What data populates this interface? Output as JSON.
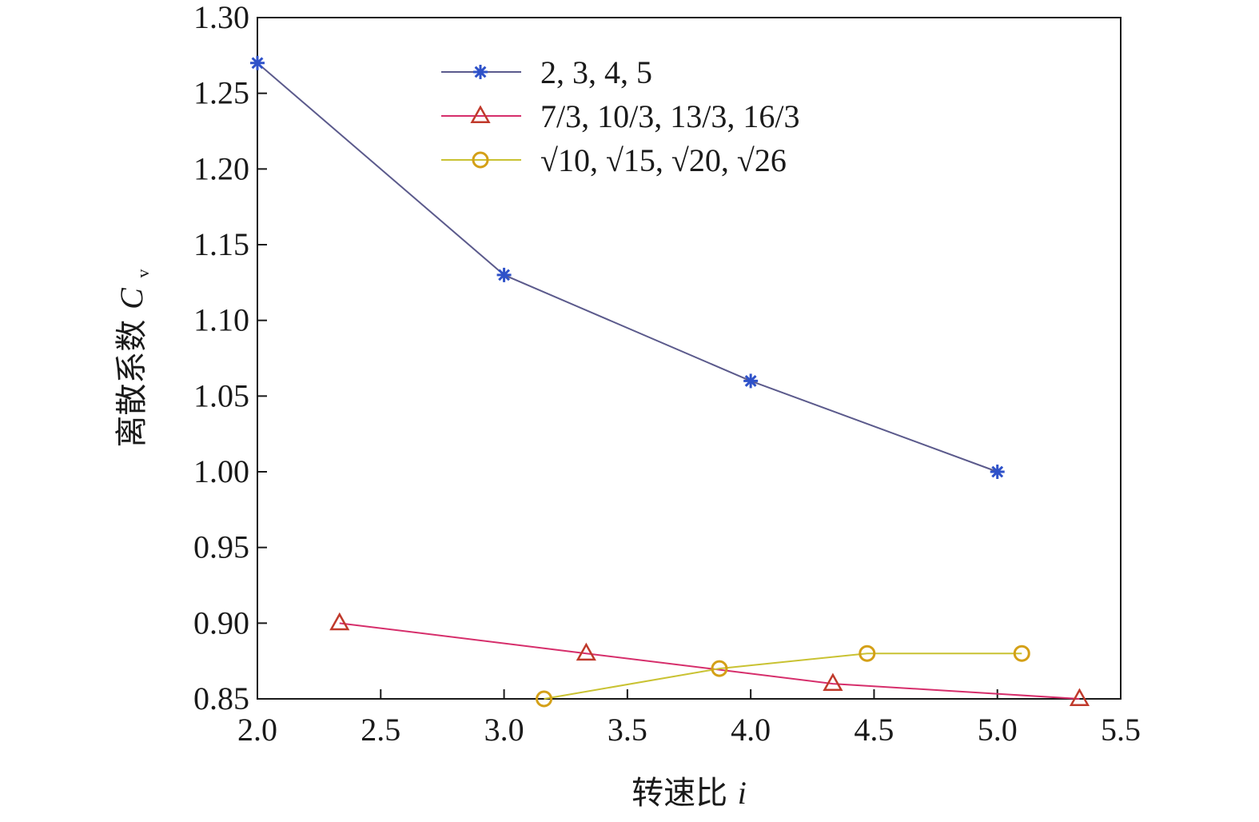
{
  "chart_data": {
    "type": "line",
    "xlabel": "转速比",
    "xlabel_var": "i",
    "ylabel": "离散系数",
    "ylabel_var": "C",
    "ylabel_sub": "v",
    "xlim": [
      2.0,
      5.5
    ],
    "ylim": [
      0.85,
      1.3
    ],
    "xticks": [
      "2.0",
      "2.5",
      "3.0",
      "3.5",
      "4.0",
      "4.5",
      "5.0",
      "5.5"
    ],
    "yticks": [
      "0.85",
      "0.90",
      "0.95",
      "1.00",
      "1.05",
      "1.10",
      "1.15",
      "1.20",
      "1.25",
      "1.30"
    ],
    "grid": false,
    "legend_position": "top-center",
    "series": [
      {
        "name": "2, 3, 4, 5",
        "marker": "asterisk",
        "line_color": "#5b5a8c",
        "marker_color": "#2f52c9",
        "x": [
          2,
          3,
          4,
          5
        ],
        "y": [
          1.27,
          1.13,
          1.06,
          1.0
        ]
      },
      {
        "name": "7/3, 10/3, 13/3, 16/3",
        "marker": "triangle",
        "line_color": "#d62e6b",
        "marker_color": "#c0392b",
        "x": [
          2.333,
          3.333,
          4.333,
          5.333
        ],
        "y": [
          0.9,
          0.88,
          0.86,
          0.85
        ]
      },
      {
        "name": "√10, √15, √20, √26",
        "marker": "circle",
        "line_color": "#c9c232",
        "marker_color": "#d4a017",
        "x": [
          3.162,
          3.873,
          4.472,
          5.099
        ],
        "y": [
          0.85,
          0.87,
          0.88,
          0.88
        ]
      }
    ]
  }
}
